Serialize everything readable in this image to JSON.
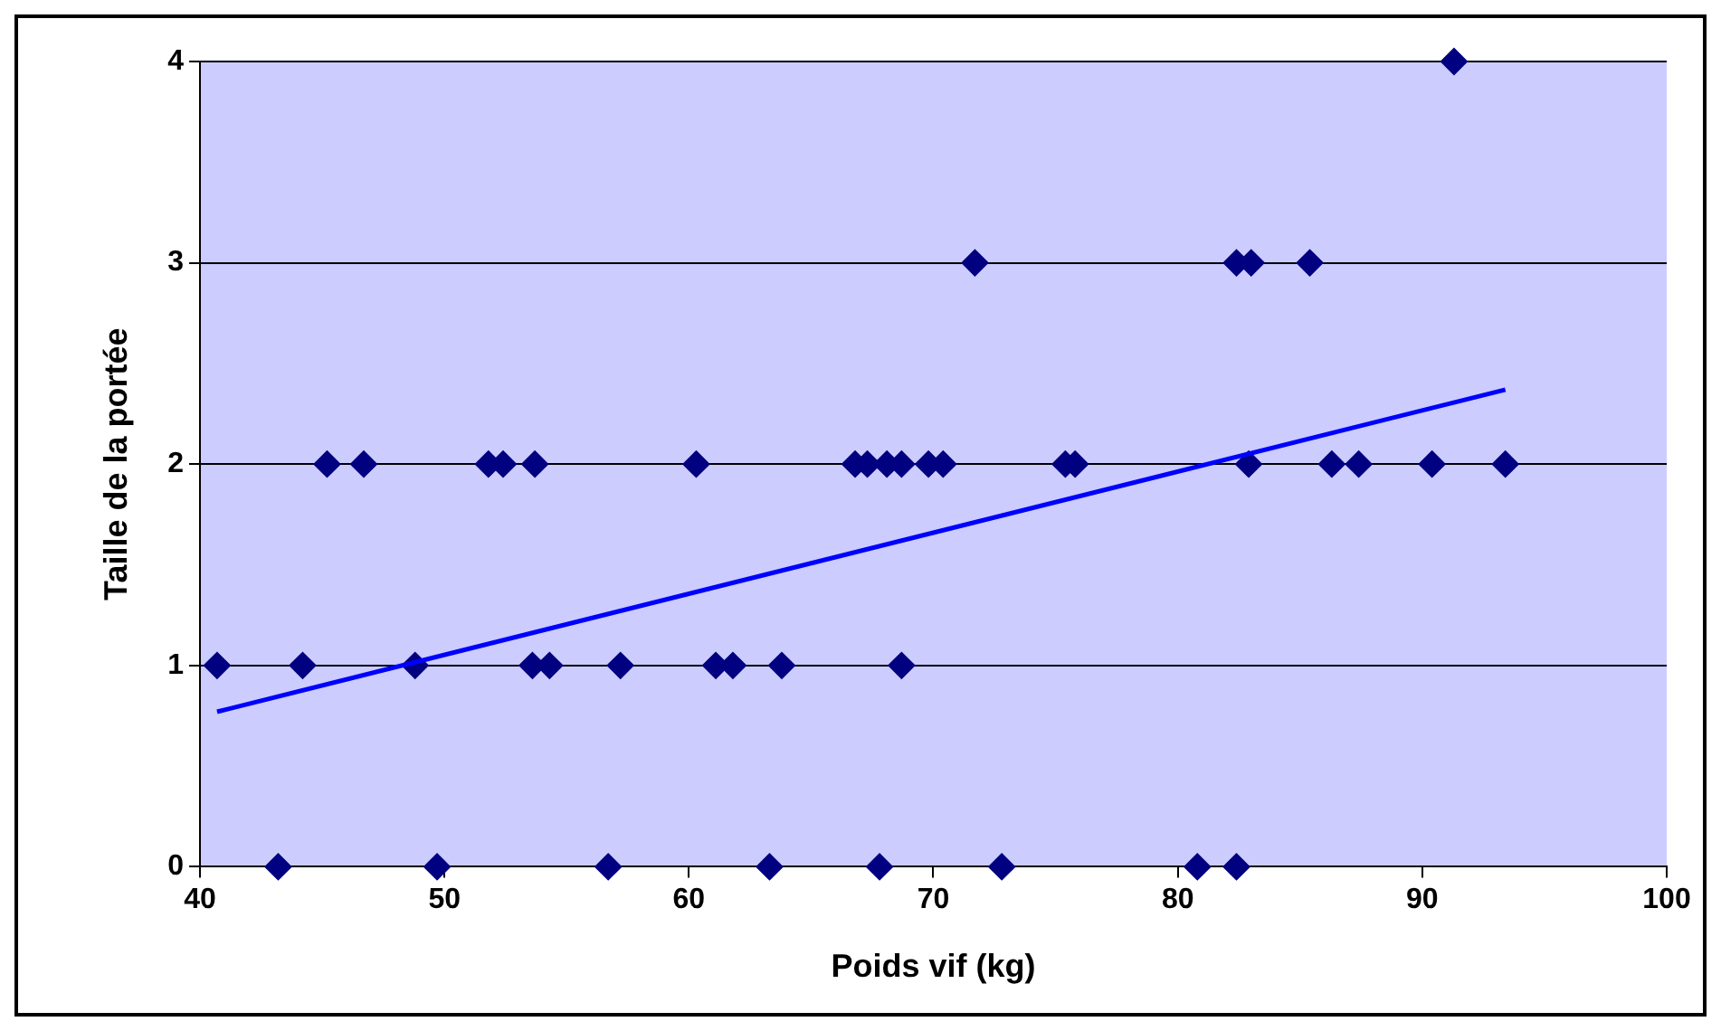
{
  "chart_data": {
    "type": "scatter",
    "xlabel": "Poids vif (kg)",
    "ylabel": "Taille de la portée",
    "xlim": [
      40,
      100
    ],
    "xticks": [
      40,
      50,
      60,
      70,
      80,
      90,
      100
    ],
    "ylim": [
      0,
      4
    ],
    "yticks": [
      0,
      1,
      2,
      3,
      4
    ],
    "grid": "y",
    "legend": false,
    "marker": "diamond",
    "series": [
      {
        "type": "scatter",
        "color": "#000080",
        "x": [
          91.3,
          71.7,
          82.4,
          83.0,
          85.4,
          45.2,
          46.7,
          51.8,
          52.4,
          53.7,
          60.3,
          66.8,
          67.3,
          68.1,
          68.7,
          69.8,
          70.4,
          75.4,
          75.8,
          82.9,
          86.3,
          87.4,
          90.4,
          93.4,
          40.7,
          44.2,
          48.8,
          53.6,
          54.3,
          57.2,
          61.1,
          61.8,
          63.8,
          68.7,
          43.2,
          49.7,
          56.7,
          63.3,
          67.8,
          72.8,
          80.8,
          82.4
        ],
        "values": [
          4,
          3,
          3,
          3,
          3,
          2,
          2,
          2,
          2,
          2,
          2,
          2,
          2,
          2,
          2,
          2,
          2,
          2,
          2,
          2,
          2,
          2,
          2,
          2,
          1,
          1,
          1,
          1,
          1,
          1,
          1,
          1,
          1,
          1,
          0,
          0,
          0,
          0,
          0,
          0,
          0,
          0
        ]
      },
      {
        "type": "line",
        "color": "#0000ff",
        "marker": "none",
        "x": [
          40.7,
          93.4
        ],
        "values": [
          0.77,
          2.37
        ]
      }
    ]
  }
}
